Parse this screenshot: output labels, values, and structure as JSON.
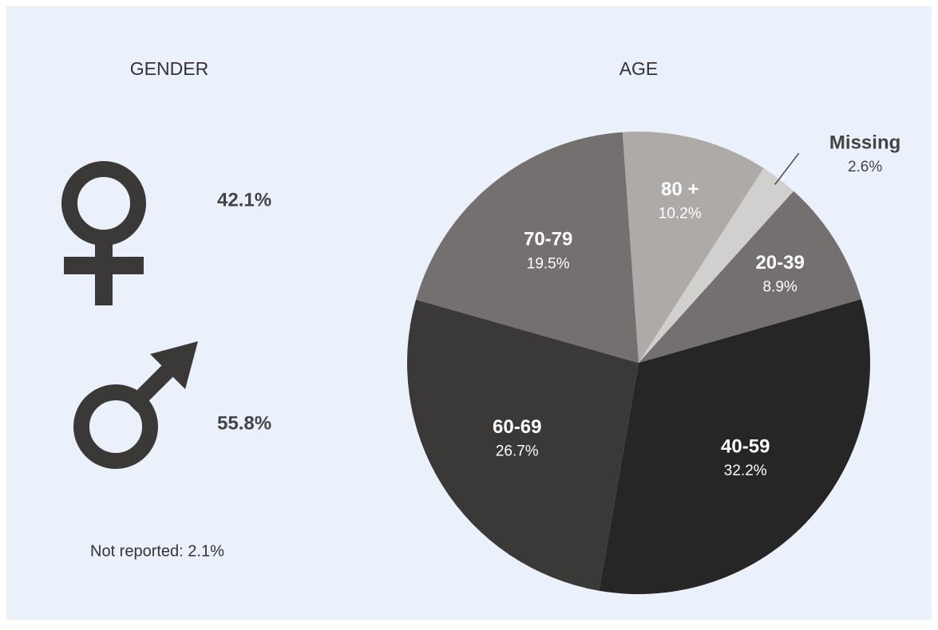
{
  "gender": {
    "title": "GENDER",
    "female": "42.1%",
    "male": "55.8%",
    "not_reported": "Not reported: 2.1%"
  },
  "chart_data": {
    "type": "pie",
    "title": "AGE",
    "categories": [
      "80 +",
      "Missing",
      "20-39",
      "40-59",
      "60-69",
      "70-79"
    ],
    "values": [
      10.2,
      2.6,
      8.9,
      32.2,
      26.7,
      19.5
    ],
    "value_labels": [
      "10.2%",
      "2.6%",
      "8.9%",
      "32.2%",
      "26.7%",
      "19.5%"
    ],
    "colors": [
      "#aeaaa8",
      "#d1d0ce",
      "#74706f",
      "#262626",
      "#3a3938",
      "#74706f"
    ]
  }
}
